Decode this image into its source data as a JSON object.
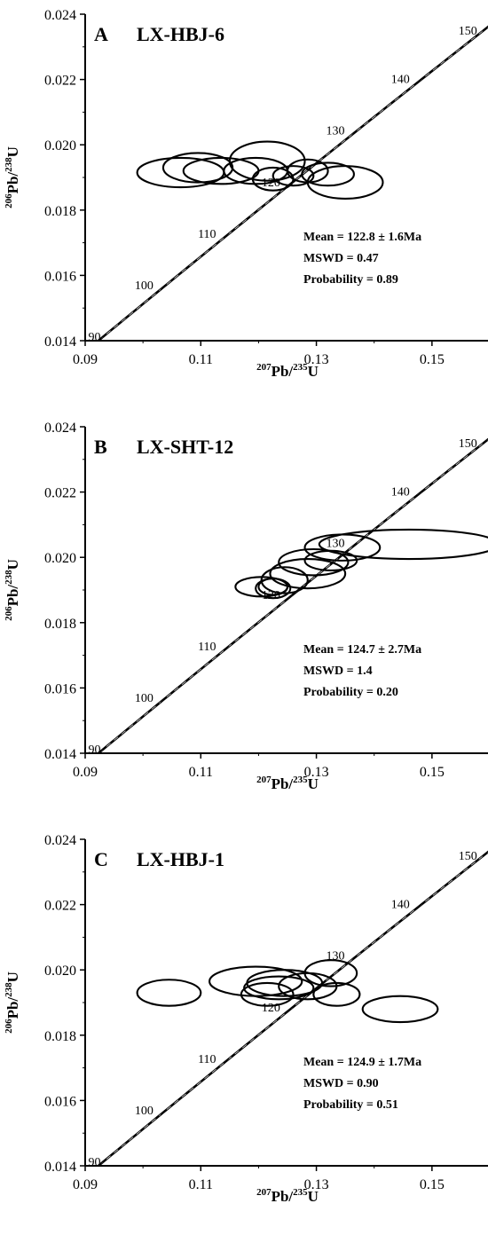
{
  "figure": {
    "panels": [
      {
        "letter": "A",
        "sample": "LX-HBJ-6",
        "stats": [
          "Mean = 122.8 ± 1.6Ma",
          "MSWD = 0.47",
          "Probability = 0.89"
        ],
        "ylabel": {
          "mass_a": "206",
          "elem_a": "Pb",
          "mass_b": "238",
          "elem_b": "U"
        },
        "xlabel": {
          "mass_a": "207",
          "elem_a": "Pb",
          "mass_b": "235",
          "elem_b": "U"
        }
      },
      {
        "letter": "B",
        "sample": "LX-SHT-12",
        "stats": [
          "Mean = 124.7 ± 2.7Ma",
          "MSWD = 1.4",
          "Probability = 0.20"
        ],
        "ylabel": {
          "mass_a": "206",
          "elem_a": "Pb",
          "mass_b": "238",
          "elem_b": "U"
        },
        "xlabel": {
          "mass_a": "207",
          "elem_a": "Pb",
          "mass_b": "235",
          "elem_b": "U"
        }
      },
      {
        "letter": "C",
        "sample": "LX-HBJ-1",
        "stats": [
          "Mean = 124.9 ± 1.7Ma",
          "MSWD = 0.90",
          "Probability = 0.51"
        ],
        "ylabel": {
          "mass_a": "206",
          "elem_a": "Pb",
          "mass_b": "238",
          "elem_b": "U"
        },
        "xlabel": {
          "mass_a": "207",
          "elem_a": "Pb",
          "mass_b": "235",
          "elem_b": "U"
        }
      }
    ]
  },
  "chart_data": [
    {
      "type": "scatter",
      "panel": "A",
      "title": "LX-HBJ-6",
      "xlim": [
        0.09,
        0.16
      ],
      "ylim": [
        0.014,
        0.024
      ],
      "x_ticks": [
        "0.09",
        "0.11",
        "0.13",
        "0.15"
      ],
      "y_ticks": [
        "0.014",
        "0.016",
        "0.018",
        "0.020",
        "0.022",
        "0.024"
      ],
      "concordia_age_labels_ma": [
        "90",
        "100",
        "110",
        "120",
        "130",
        "140",
        "150"
      ],
      "error_ellipses": [
        {
          "x": 0.1065,
          "y": 0.01915,
          "dx": 0.0075,
          "dy": 0.00045
        },
        {
          "x": 0.1095,
          "y": 0.0193,
          "dx": 0.006,
          "dy": 0.00045
        },
        {
          "x": 0.1135,
          "y": 0.0192,
          "dx": 0.0065,
          "dy": 0.0004
        },
        {
          "x": 0.1215,
          "y": 0.0195,
          "dx": 0.0065,
          "dy": 0.0006
        },
        {
          "x": 0.1195,
          "y": 0.0192,
          "dx": 0.0055,
          "dy": 0.0004
        },
        {
          "x": 0.1225,
          "y": 0.01895,
          "dx": 0.0035,
          "dy": 0.00035
        },
        {
          "x": 0.126,
          "y": 0.01905,
          "dx": 0.0035,
          "dy": 0.0003
        },
        {
          "x": 0.1285,
          "y": 0.0192,
          "dx": 0.0035,
          "dy": 0.00035
        },
        {
          "x": 0.132,
          "y": 0.0191,
          "dx": 0.0045,
          "dy": 0.00035
        },
        {
          "x": 0.135,
          "y": 0.01885,
          "dx": 0.0065,
          "dy": 0.0005
        }
      ]
    },
    {
      "type": "scatter",
      "panel": "B",
      "title": "LX-SHT-12",
      "xlim": [
        0.09,
        0.16
      ],
      "ylim": [
        0.014,
        0.024
      ],
      "x_ticks": [
        "0.09",
        "0.11",
        "0.13",
        "0.15"
      ],
      "y_ticks": [
        "0.014",
        "0.016",
        "0.018",
        "0.020",
        "0.022",
        "0.024"
      ],
      "concordia_age_labels_ma": [
        "90",
        "100",
        "110",
        "120",
        "130",
        "140",
        "150"
      ],
      "error_ellipses": [
        {
          "x": 0.1205,
          "y": 0.0191,
          "dx": 0.0045,
          "dy": 0.0003
        },
        {
          "x": 0.1225,
          "y": 0.01905,
          "dx": 0.003,
          "dy": 0.0003
        },
        {
          "x": 0.1245,
          "y": 0.0193,
          "dx": 0.004,
          "dy": 0.0004
        },
        {
          "x": 0.1225,
          "y": 0.0191,
          "dx": 0.0025,
          "dy": 0.00025
        },
        {
          "x": 0.1285,
          "y": 0.0195,
          "dx": 0.0065,
          "dy": 0.00045
        },
        {
          "x": 0.1295,
          "y": 0.01985,
          "dx": 0.006,
          "dy": 0.0004
        },
        {
          "x": 0.1325,
          "y": 0.0199,
          "dx": 0.0045,
          "dy": 0.0003
        },
        {
          "x": 0.1345,
          "y": 0.0203,
          "dx": 0.0065,
          "dy": 0.0004
        },
        {
          "x": 0.146,
          "y": 0.0204,
          "dx": 0.0155,
          "dy": 0.00045
        }
      ]
    },
    {
      "type": "scatter",
      "panel": "C",
      "title": "LX-HBJ-1",
      "xlim": [
        0.09,
        0.16
      ],
      "ylim": [
        0.014,
        0.024
      ],
      "x_ticks": [
        "0.09",
        "0.11",
        "0.13",
        "0.15"
      ],
      "y_ticks": [
        "0.014",
        "0.016",
        "0.018",
        "0.020",
        "0.022",
        "0.024"
      ],
      "concordia_age_labels_ma": [
        "90",
        "100",
        "110",
        "120",
        "130",
        "140",
        "150"
      ],
      "error_ellipses": [
        {
          "x": 0.1045,
          "y": 0.0193,
          "dx": 0.0055,
          "dy": 0.0004
        },
        {
          "x": 0.1195,
          "y": 0.01965,
          "dx": 0.008,
          "dy": 0.00045
        },
        {
          "x": 0.1215,
          "y": 0.01925,
          "dx": 0.0045,
          "dy": 0.00035
        },
        {
          "x": 0.1245,
          "y": 0.0196,
          "dx": 0.0065,
          "dy": 0.0004
        },
        {
          "x": 0.1235,
          "y": 0.01945,
          "dx": 0.006,
          "dy": 0.00035
        },
        {
          "x": 0.1285,
          "y": 0.0195,
          "dx": 0.005,
          "dy": 0.0004
        },
        {
          "x": 0.1325,
          "y": 0.0199,
          "dx": 0.0045,
          "dy": 0.0004
        },
        {
          "x": 0.1335,
          "y": 0.01925,
          "dx": 0.004,
          "dy": 0.00035
        },
        {
          "x": 0.1445,
          "y": 0.0188,
          "dx": 0.0065,
          "dy": 0.0004
        }
      ]
    }
  ]
}
